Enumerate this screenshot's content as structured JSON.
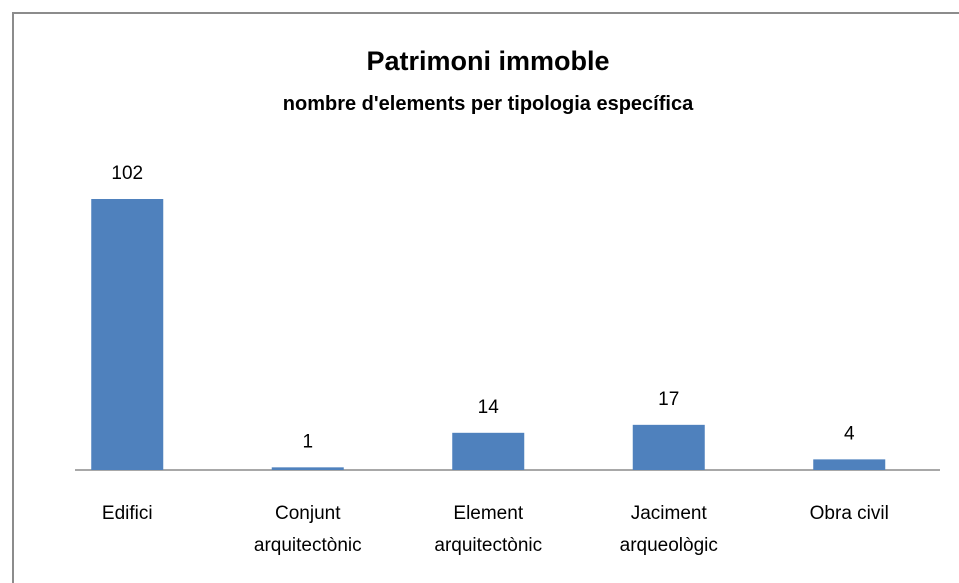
{
  "chart_data": {
    "type": "bar",
    "title": "Patrimoni immoble",
    "subtitle": "nombre d'elements per tipologia específica",
    "categories": [
      "Edifici",
      "Conjunt arquitectònic",
      "Element arquitectònic",
      "Jaciment arqueològic",
      "Obra civil"
    ],
    "values": [
      102,
      1,
      14,
      17,
      4
    ],
    "color": "#4f81bd"
  }
}
